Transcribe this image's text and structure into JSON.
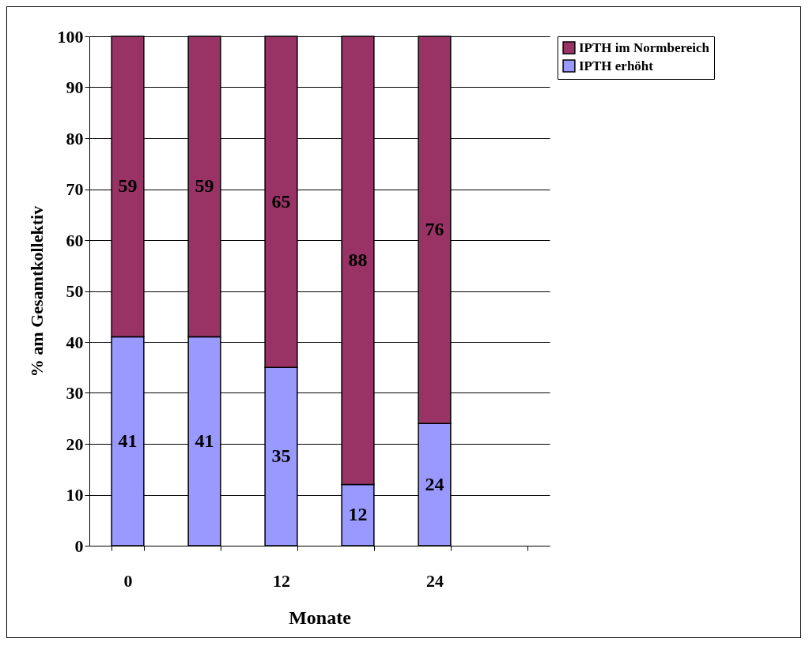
{
  "chart_data": {
    "type": "bar",
    "stacked": true,
    "xlabel": "Monate",
    "ylabel": "% am Gesamtkollektiv",
    "categories": [
      "0",
      null,
      "12",
      null,
      "24",
      null
    ],
    "series": [
      {
        "name": "IPTH erhöht",
        "color": "#9999ff",
        "values": [
          41,
          41,
          35,
          12,
          24,
          null
        ]
      },
      {
        "name": "IPTH im Normbereich",
        "color": "#993366",
        "values": [
          59,
          59,
          65,
          88,
          76,
          null
        ]
      }
    ],
    "ylim": [
      0,
      100
    ],
    "yticks": [
      0,
      10,
      20,
      30,
      40,
      50,
      60,
      70,
      80,
      90,
      100
    ],
    "grid": "y",
    "legend": "right",
    "data_labels": true
  }
}
